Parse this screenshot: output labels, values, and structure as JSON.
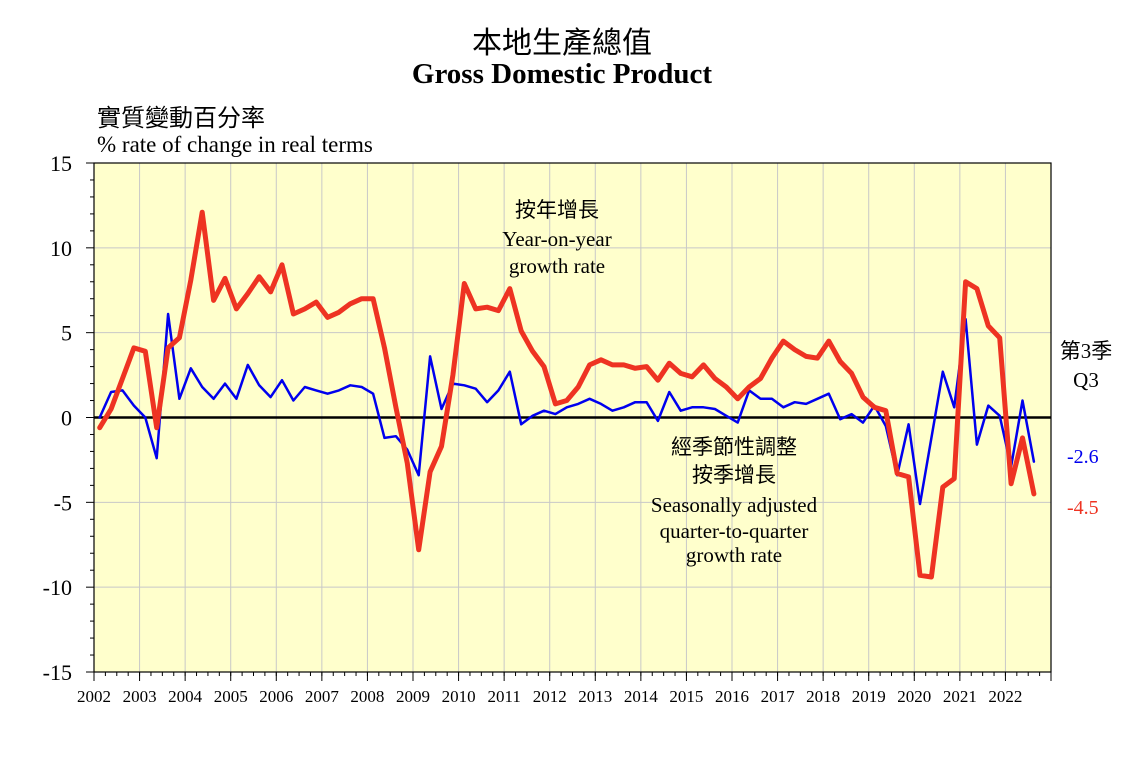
{
  "title_zh": "本地生產總值",
  "title_en": "Gross Domestic Product",
  "ylabel_zh": "實質變動百分率",
  "ylabel_en": "% rate of change in real terms",
  "annotations": {
    "yoy": [
      "按年增長",
      "Year-on-year",
      "growth rate"
    ],
    "qoq": [
      "經季節性調整",
      "按季增長",
      "Seasonally adjusted",
      "quarter-to-quarter",
      "growth rate"
    ],
    "latest_period": [
      "第3季",
      "Q3"
    ]
  },
  "chart_data": {
    "type": "line",
    "ylim": [
      -15,
      15
    ],
    "y_ticks": [
      "15",
      "10",
      "5",
      "0",
      "-5",
      "-10",
      "-15"
    ],
    "x_tick_labels": [
      "2002",
      "2003",
      "2004",
      "2005",
      "2006",
      "2007",
      "2008",
      "2009",
      "2010",
      "2011",
      "2012",
      "2013",
      "2014",
      "2015",
      "2016",
      "2017",
      "2018",
      "2019",
      "2020",
      "2021",
      "2022"
    ],
    "x_quarters": "2002-Q1 to 2022-Q3",
    "grid": true,
    "colors": {
      "yoy": "#ee3322",
      "qoq": "#0000ee",
      "background": "#ffffcc",
      "grid": "#c8c8c8"
    },
    "series": [
      {
        "key": "yoy",
        "values": [
          -0.6,
          0.5,
          2.3,
          4.1,
          3.9,
          -0.6,
          4.1,
          4.7,
          8.1,
          12.1,
          6.9,
          8.2,
          6.4,
          7.3,
          8.3,
          7.4,
          9.0,
          6.1,
          6.4,
          6.8,
          5.9,
          6.2,
          6.7,
          7.0,
          7.0,
          4.1,
          0.6,
          -2.7,
          -7.8,
          -3.2,
          -1.7,
          2.5,
          7.9,
          6.4,
          6.5,
          6.3,
          7.6,
          5.1,
          3.9,
          3.0,
          0.8,
          1.0,
          1.8,
          3.1,
          3.4,
          3.1,
          3.1,
          2.9,
          3.0,
          2.2,
          3.2,
          2.6,
          2.4,
          3.1,
          2.3,
          1.8,
          1.1,
          1.8,
          2.3,
          3.5,
          4.5,
          4.0,
          3.6,
          3.5,
          4.5,
          3.3,
          2.6,
          1.2,
          0.6,
          0.4,
          -3.3,
          -3.5,
          -9.3,
          -9.4,
          -4.1,
          -3.6,
          8.0,
          7.6,
          5.4,
          4.7,
          -3.9,
          -1.2,
          -4.5
        ]
      },
      {
        "key": "qoq",
        "values": [
          0.0,
          1.5,
          1.6,
          0.7,
          0.0,
          -2.4,
          6.1,
          1.1,
          2.9,
          1.8,
          1.1,
          2.0,
          1.1,
          3.1,
          1.9,
          1.2,
          2.2,
          1.0,
          1.8,
          1.6,
          1.4,
          1.6,
          1.9,
          1.8,
          1.4,
          -1.2,
          -1.1,
          -1.9,
          -3.4,
          3.6,
          0.5,
          2.0,
          1.9,
          1.7,
          0.9,
          1.6,
          2.7,
          -0.4,
          0.1,
          0.4,
          0.2,
          0.6,
          0.8,
          1.1,
          0.8,
          0.4,
          0.6,
          0.9,
          0.9,
          -0.2,
          1.5,
          0.4,
          0.6,
          0.6,
          0.5,
          0.1,
          -0.3,
          1.6,
          1.1,
          1.1,
          0.6,
          0.9,
          0.8,
          1.1,
          1.4,
          -0.1,
          0.2,
          -0.3,
          0.7,
          -0.5,
          -3.4,
          -0.4,
          -5.1,
          -1.2,
          2.7,
          0.6,
          5.8,
          -1.6,
          0.7,
          0.1,
          -2.9,
          1.0,
          -2.6
        ]
      }
    ],
    "end_labels": {
      "qoq": "-2.6",
      "yoy": "-4.5"
    }
  }
}
